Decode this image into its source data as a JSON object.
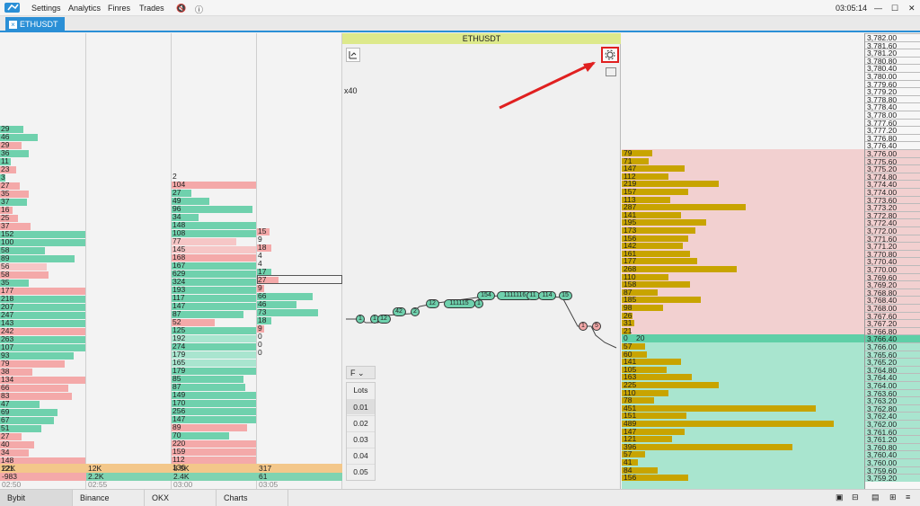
{
  "menu": {
    "settings": "Settings",
    "analytics": "Analytics",
    "finres": "Finres",
    "trades": "Trades",
    "clock": "03:05:14"
  },
  "tab": {
    "symbol": "ETHUSDT",
    "close": "×"
  },
  "chart_header": "ETHUSDT",
  "zoom": "x40",
  "footer": [
    "Bybit",
    "Binance",
    "OKX",
    "Charts"
  ],
  "col1": [
    [
      "29",
      "g",
      26
    ],
    [
      "46",
      "g",
      42
    ],
    [
      "29",
      "r",
      24
    ],
    [
      "36",
      "g",
      32
    ],
    [
      "11",
      "g",
      12
    ],
    [
      "23",
      "r",
      18
    ],
    [
      "3",
      "g",
      6
    ],
    [
      "27",
      "r",
      22
    ],
    [
      "35",
      "r",
      32
    ],
    [
      "37",
      "g",
      30
    ],
    [
      "16",
      "r",
      14
    ],
    [
      "25",
      "r",
      20
    ],
    [
      "37",
      "r",
      34
    ],
    [
      "152",
      "g",
      95
    ],
    [
      "100",
      "g",
      95
    ],
    [
      "58",
      "g",
      50
    ],
    [
      "89",
      "g",
      83
    ],
    [
      "56",
      "lr",
      52
    ],
    [
      "58",
      "r",
      54
    ],
    [
      "35",
      "g",
      32
    ],
    [
      "177",
      "r",
      95
    ],
    [
      "218",
      "g",
      95
    ],
    [
      "207",
      "g",
      95
    ],
    [
      "247",
      "g",
      95
    ],
    [
      "143",
      "g",
      95
    ],
    [
      "242",
      "r",
      95
    ],
    [
      "263",
      "g",
      95
    ],
    [
      "107",
      "g",
      95
    ],
    [
      "93",
      "g",
      82
    ],
    [
      "79",
      "r",
      72
    ],
    [
      "38",
      "r",
      36
    ],
    [
      "134",
      "r",
      95
    ],
    [
      "66",
      "r",
      76
    ],
    [
      "83",
      "r",
      80
    ],
    [
      "47",
      "g",
      44
    ],
    [
      "69",
      "g",
      64
    ],
    [
      "67",
      "g",
      60
    ],
    [
      "51",
      "g",
      46
    ],
    [
      "27",
      "r",
      24
    ],
    [
      "40",
      "r",
      38
    ],
    [
      "34",
      "r",
      32
    ],
    [
      "148",
      "r",
      95
    ],
    [
      "121",
      "r",
      95
    ]
  ],
  "col3": [
    [
      "2",
      "n",
      0
    ],
    [
      "104",
      "r",
      95
    ],
    [
      "27",
      "g",
      22
    ],
    [
      "49",
      "g",
      42
    ],
    [
      "96",
      "g",
      90
    ],
    [
      "34",
      "g",
      30
    ],
    [
      "148",
      "g",
      95
    ],
    [
      "108",
      "g",
      95
    ],
    [
      "77",
      "lr",
      72
    ],
    [
      "145",
      "lr",
      95
    ],
    [
      "168",
      "r",
      95
    ],
    [
      "167",
      "g",
      95
    ],
    [
      "629",
      "g",
      95
    ],
    [
      "324",
      "g",
      95
    ],
    [
      "193",
      "g",
      95
    ],
    [
      "117",
      "g",
      95
    ],
    [
      "147",
      "g",
      95
    ],
    [
      "87",
      "g",
      80
    ],
    [
      "52",
      "r",
      48
    ],
    [
      "125",
      "g",
      95
    ],
    [
      "192",
      "lg",
      95
    ],
    [
      "274",
      "g",
      95
    ],
    [
      "179",
      "lg",
      95
    ],
    [
      "165",
      "lg",
      95
    ],
    [
      "179",
      "g",
      95
    ],
    [
      "85",
      "g",
      80
    ],
    [
      "87",
      "g",
      82
    ],
    [
      "149",
      "g",
      95
    ],
    [
      "170",
      "g",
      95
    ],
    [
      "256",
      "g",
      95
    ],
    [
      "147",
      "g",
      95
    ],
    [
      "89",
      "r",
      84
    ],
    [
      "70",
      "g",
      64
    ],
    [
      "220",
      "r",
      95
    ],
    [
      "159",
      "r",
      95
    ],
    [
      "112",
      "r",
      95
    ],
    [
      "136",
      "g",
      95
    ]
  ],
  "col4": [
    [
      "15",
      "r",
      14
    ],
    [
      "9",
      "n",
      0
    ],
    [
      "18",
      "r",
      16
    ],
    [
      "4",
      "n",
      0
    ],
    [
      "4",
      "n",
      0
    ],
    [
      "17",
      "g",
      16
    ],
    [
      "27",
      "r",
      24
    ],
    [
      "9",
      "r",
      8
    ],
    [
      "66",
      "g",
      62
    ],
    [
      "46",
      "g",
      44
    ],
    [
      "73",
      "g",
      68
    ],
    [
      "18",
      "g",
      16
    ],
    [
      "9",
      "r",
      8
    ],
    [
      "0",
      "n",
      0
    ],
    [
      "0",
      "n",
      0
    ],
    [
      "0",
      "n",
      0
    ]
  ],
  "summaries": {
    "c1": [
      "22K",
      "-983"
    ],
    "c2": [
      "12K",
      "2.2K"
    ],
    "c3": [
      "8.5K",
      "2.4K"
    ],
    "c4": [
      "317",
      "61"
    ]
  },
  "times": [
    "02:50",
    "02:55",
    "03:00",
    "03:05"
  ],
  "lots": {
    "title": "Lots",
    "selector": "F",
    "values": [
      "0.01",
      "0.02",
      "0.03",
      "0.04",
      "0.05"
    ]
  },
  "trades": [
    [
      "1",
      "g"
    ],
    [
      "1",
      "g"
    ],
    [
      "12",
      "g"
    ],
    [
      "42",
      "g"
    ],
    [
      "2",
      "g"
    ],
    [
      "12",
      "g"
    ],
    [
      "111115",
      "g"
    ],
    [
      "1",
      "g"
    ],
    [
      "154",
      "g"
    ],
    [
      "1111116",
      "g"
    ],
    [
      "11",
      "g"
    ],
    [
      "114",
      "g"
    ],
    [
      "15",
      "g"
    ],
    [
      "1",
      "r"
    ],
    [
      "5",
      "r"
    ]
  ],
  "book_asks": [
    [
      "79",
      34
    ],
    [
      "71",
      30
    ],
    [
      "147",
      70
    ],
    [
      "112",
      52
    ],
    [
      "219",
      108
    ],
    [
      "157",
      74
    ],
    [
      "113",
      54
    ],
    [
      "287",
      138
    ],
    [
      "141",
      66
    ],
    [
      "195",
      94
    ],
    [
      "173",
      82
    ],
    [
      "156",
      74
    ],
    [
      "142",
      68
    ],
    [
      "161",
      76
    ],
    [
      "177",
      84
    ],
    [
      "268",
      128
    ],
    [
      "110",
      52
    ],
    [
      "158",
      76
    ],
    [
      "87",
      40
    ],
    [
      "185",
      88
    ],
    [
      "98",
      46
    ],
    [
      "26",
      12
    ],
    [
      "31",
      14
    ],
    [
      "21",
      10
    ]
  ],
  "book_mid": [
    "0",
    "20"
  ],
  "book_bids": [
    [
      "57",
      26
    ],
    [
      "60",
      28
    ],
    [
      "141",
      66
    ],
    [
      "105",
      50
    ],
    [
      "163",
      78
    ],
    [
      "225",
      108
    ],
    [
      "110",
      52
    ],
    [
      "78",
      36
    ],
    [
      "451",
      216
    ],
    [
      "151",
      72
    ],
    [
      "489",
      236
    ],
    [
      "147",
      70
    ],
    [
      "121",
      56
    ],
    [
      "396",
      190
    ],
    [
      "57",
      26
    ],
    [
      "41",
      18
    ],
    [
      "84",
      40
    ],
    [
      "156",
      74
    ]
  ],
  "prices": [
    "3,782.00",
    "3,781.60",
    "3,781.20",
    "3,780.80",
    "3,780.40",
    "3,780.00",
    "3,779.60",
    "3,779.20",
    "3,778.80",
    "3,778.40",
    "3,778.00",
    "3,777.60",
    "3,777.20",
    "3,776.80",
    "3,776.40",
    "3,776.00",
    "3,775.60",
    "3,775.20",
    "3,774.80",
    "3,774.40",
    "3,774.00",
    "3,773.60",
    "3,773.20",
    "3,772.80",
    "3,772.40",
    "3,772.00",
    "3,771.60",
    "3,771.20",
    "3,770.80",
    "3,770.40",
    "3,770.00",
    "3,769.60",
    "3,769.20",
    "3,768.80",
    "3,768.40",
    "3,768.00",
    "3,767.60",
    "3,767.20",
    "3,766.80",
    "3,766.40",
    "3,766.00",
    "3,765.60",
    "3,765.20",
    "3,764.80",
    "3,764.40",
    "3,764.00",
    "3,763.60",
    "3,763.20",
    "3,762.80",
    "3,762.40",
    "3,762.00",
    "3,761.60",
    "3,761.20",
    "3,760.80",
    "3,760.40",
    "3,760.00",
    "3,759.60",
    "3,759.20"
  ],
  "colors": {
    "accent": "#2a8fd6",
    "buy": "#6fd1ad",
    "sell": "#f4a9a9",
    "book": "#c8a400",
    "highlight": "#e02020"
  }
}
